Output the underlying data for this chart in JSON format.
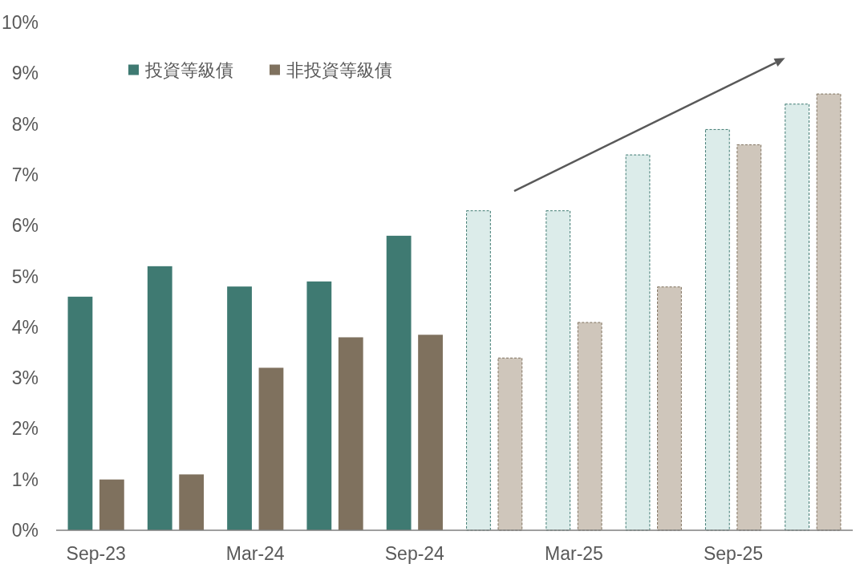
{
  "chart_data": {
    "type": "bar",
    "categories": [
      "Sep-23",
      null,
      "Mar-24",
      null,
      "Sep-24",
      null,
      "Mar-25",
      null,
      "Sep-25",
      null
    ],
    "series": [
      {
        "name": "投資等級債",
        "color": "#3f7a72",
        "colors": [
          "#3f7a72",
          "#3f7a72",
          "#3f7a72",
          "#3f7a72",
          "#3f7a72",
          "#dcecea",
          "#dcecea",
          "#dcecea",
          "#dcecea",
          "#dcecea"
        ],
        "values": [
          4.6,
          5.2,
          4.8,
          4.9,
          5.8,
          6.3,
          6.3,
          7.4,
          7.9,
          8.4
        ]
      },
      {
        "name": "非投資等級債",
        "color": "#7f715e",
        "colors": [
          "#7f715e",
          "#7f715e",
          "#7f715e",
          "#7f715e",
          "#7f715e",
          "#cfc6bb",
          "#cfc6bb",
          "#cfc6bb",
          "#cfc6bb",
          "#cfc6bb"
        ],
        "values": [
          1.0,
          1.1,
          3.2,
          3.8,
          3.85,
          3.4,
          4.1,
          4.8,
          7.6,
          8.6
        ]
      }
    ],
    "ylim": [
      0,
      10
    ],
    "yticks": [
      {
        "value": 0,
        "label": "0%"
      },
      {
        "value": 1,
        "label": "1%"
      },
      {
        "value": 2,
        "label": "2%"
      },
      {
        "value": 3,
        "label": "3%"
      },
      {
        "value": 4,
        "label": "4%"
      },
      {
        "value": 5,
        "label": "5%"
      },
      {
        "value": 6,
        "label": "6%"
      },
      {
        "value": 7,
        "label": "7%"
      },
      {
        "value": 8,
        "label": "8%"
      },
      {
        "value": 9,
        "label": "9%"
      },
      {
        "value": 10,
        "label": "10%"
      }
    ],
    "legend": "top left"
  }
}
